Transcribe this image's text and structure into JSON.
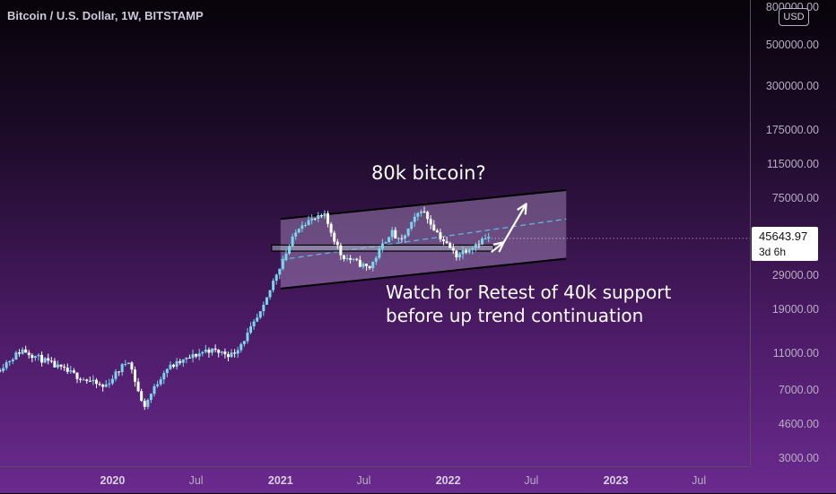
{
  "header": {
    "title": "Bitcoin / U.S. Dollar, 1W, BITSTAMP"
  },
  "price_axis": {
    "currency": "USD",
    "current_price": "45643.97",
    "countdown": "3d 6h"
  },
  "annotations": {
    "target": "80k bitcoin?",
    "note_line1": "Watch for Retest of 40k support",
    "note_line2": "before up trend continuation"
  },
  "colors": {
    "up_candle": "#7ad6ef",
    "down_candle": "#ffffff",
    "channel_fill": "#b79ad0",
    "channel_line": "#000000",
    "midline": "#5ab8e0",
    "background_top": "#070309",
    "background_bottom": "#6a2a8e"
  },
  "chart_data": {
    "type": "candlestick",
    "title": "Bitcoin / U.S. Dollar, 1W, BITSTAMP",
    "yscale": "log",
    "ylim": [
      3000,
      800000
    ],
    "xlim": [
      "2019-05-01",
      "2023-10-20"
    ],
    "y_ticks": [
      "3000.00",
      "4600.00",
      "7000.00",
      "11000.00",
      "19000.00",
      "29000.00",
      "45643.97",
      "75000.00",
      "115000.00",
      "175000.00",
      "300000.00",
      "500000.00",
      "800000.00"
    ],
    "x_ticks": [
      "2020",
      "Jul",
      "2021",
      "Jul",
      "2022",
      "Jul",
      "2023",
      "Jul"
    ],
    "x_tick_dates": [
      "2020-01-01",
      "2020-07-01",
      "2021-01-01",
      "2021-07-01",
      "2022-01-01",
      "2022-07-01",
      "2023-01-01",
      "2023-07-01"
    ],
    "close_path": [
      [
        "2019-05-01",
        8900
      ],
      [
        "2019-06-25",
        11500
      ],
      [
        "2019-09-20",
        9000
      ],
      [
        "2019-12-20",
        7200
      ],
      [
        "2020-02-12",
        10200
      ],
      [
        "2020-03-15",
        5600
      ],
      [
        "2020-05-01",
        9000
      ],
      [
        "2020-08-01",
        11500
      ],
      [
        "2020-09-25",
        10800
      ],
      [
        "2020-10-25",
        13500
      ],
      [
        "2020-12-01",
        19000
      ],
      [
        "2020-12-28",
        29000
      ],
      [
        "2021-01-15",
        36000
      ],
      [
        "2021-02-20",
        55000
      ],
      [
        "2021-04-14",
        60000
      ],
      [
        "2021-05-20",
        37000
      ],
      [
        "2021-07-20",
        31500
      ],
      [
        "2021-09-05",
        50000
      ],
      [
        "2021-09-25",
        43000
      ],
      [
        "2021-11-10",
        66000
      ],
      [
        "2021-12-20",
        47000
      ],
      [
        "2022-01-25",
        37000
      ],
      [
        "2022-03-28",
        45600
      ],
      [
        "2022-04-05",
        45643.97
      ]
    ],
    "channel": {
      "upper": [
        [
          "2021-01-01",
          58000
        ],
        [
          "2022-09-15",
          83000
        ]
      ],
      "lower": [
        [
          "2021-01-01",
          24500
        ],
        [
          "2022-09-15",
          35500
        ]
      ],
      "midline": [
        [
          "2021-01-01",
          35000
        ],
        [
          "2022-09-15",
          58000
        ]
      ]
    },
    "support_zone": {
      "from": "2021-01-01",
      "to": "2022-04-10",
      "high": 42000,
      "low": 39000,
      "label": "40k support"
    },
    "projection_arrow": [
      [
        "2022-04-05",
        38500
      ],
      [
        "2022-05-02",
        43500
      ],
      [
        "2022-06-20",
        70000
      ]
    ],
    "current_price": 45643.97,
    "grid": false
  }
}
